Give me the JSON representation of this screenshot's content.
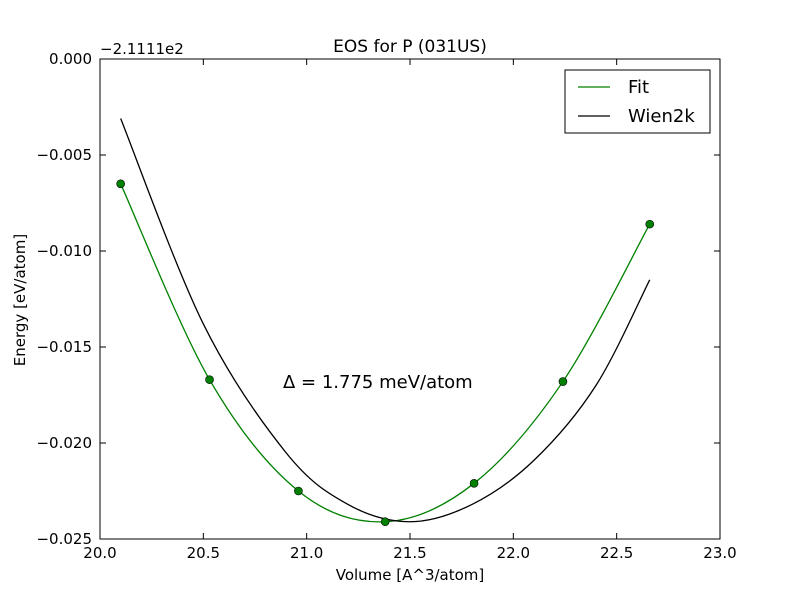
{
  "chart_data": {
    "type": "scatter",
    "title": "EOS for P (031US)",
    "xlabel": "Volume [A^3/atom]",
    "ylabel": "Energy [eV/atom]",
    "offset_label": "−2.1111e2",
    "xlim": [
      20.0,
      23.0
    ],
    "ylim": [
      -0.025,
      0.0
    ],
    "xticks": [
      20.0,
      20.5,
      21.0,
      21.5,
      22.0,
      22.5,
      23.0
    ],
    "xtick_labels": [
      "20.0",
      "20.5",
      "21.0",
      "21.5",
      "22.0",
      "22.5",
      "23.0"
    ],
    "yticks": [
      0.0,
      -0.005,
      -0.01,
      -0.015,
      -0.02,
      -0.025
    ],
    "ytick_labels": [
      "0.000",
      "−0.005",
      "−0.010",
      "−0.015",
      "−0.020",
      "−0.025"
    ],
    "annotation": "Δ = 1.775 meV/atom",
    "legend_position": "top-right",
    "grid": false,
    "series": [
      {
        "name": "Fit",
        "kind": "line",
        "color": "#008000",
        "x": [
          20.1,
          20.53,
          20.96,
          21.38,
          21.81,
          22.24,
          22.66
        ],
        "y": [
          -0.0065,
          -0.0167,
          -0.0225,
          -0.0241,
          -0.0221,
          -0.0168,
          -0.0086
        ]
      },
      {
        "name": "Wien2k",
        "kind": "line",
        "color": "#000000",
        "x": [
          20.1,
          20.5,
          20.9,
          21.2,
          21.5,
          21.8,
          22.1,
          22.4,
          22.66
        ],
        "y": [
          -0.0031,
          -0.0138,
          -0.0205,
          -0.0232,
          -0.0241,
          -0.0232,
          -0.0209,
          -0.017,
          -0.0115
        ]
      },
      {
        "name": "",
        "kind": "markers",
        "color": "#008000",
        "x": [
          20.1,
          20.53,
          20.96,
          21.38,
          21.81,
          22.24,
          22.66
        ],
        "y": [
          -0.0065,
          -0.0167,
          -0.0225,
          -0.0241,
          -0.0221,
          -0.0168,
          -0.0086
        ]
      }
    ]
  }
}
